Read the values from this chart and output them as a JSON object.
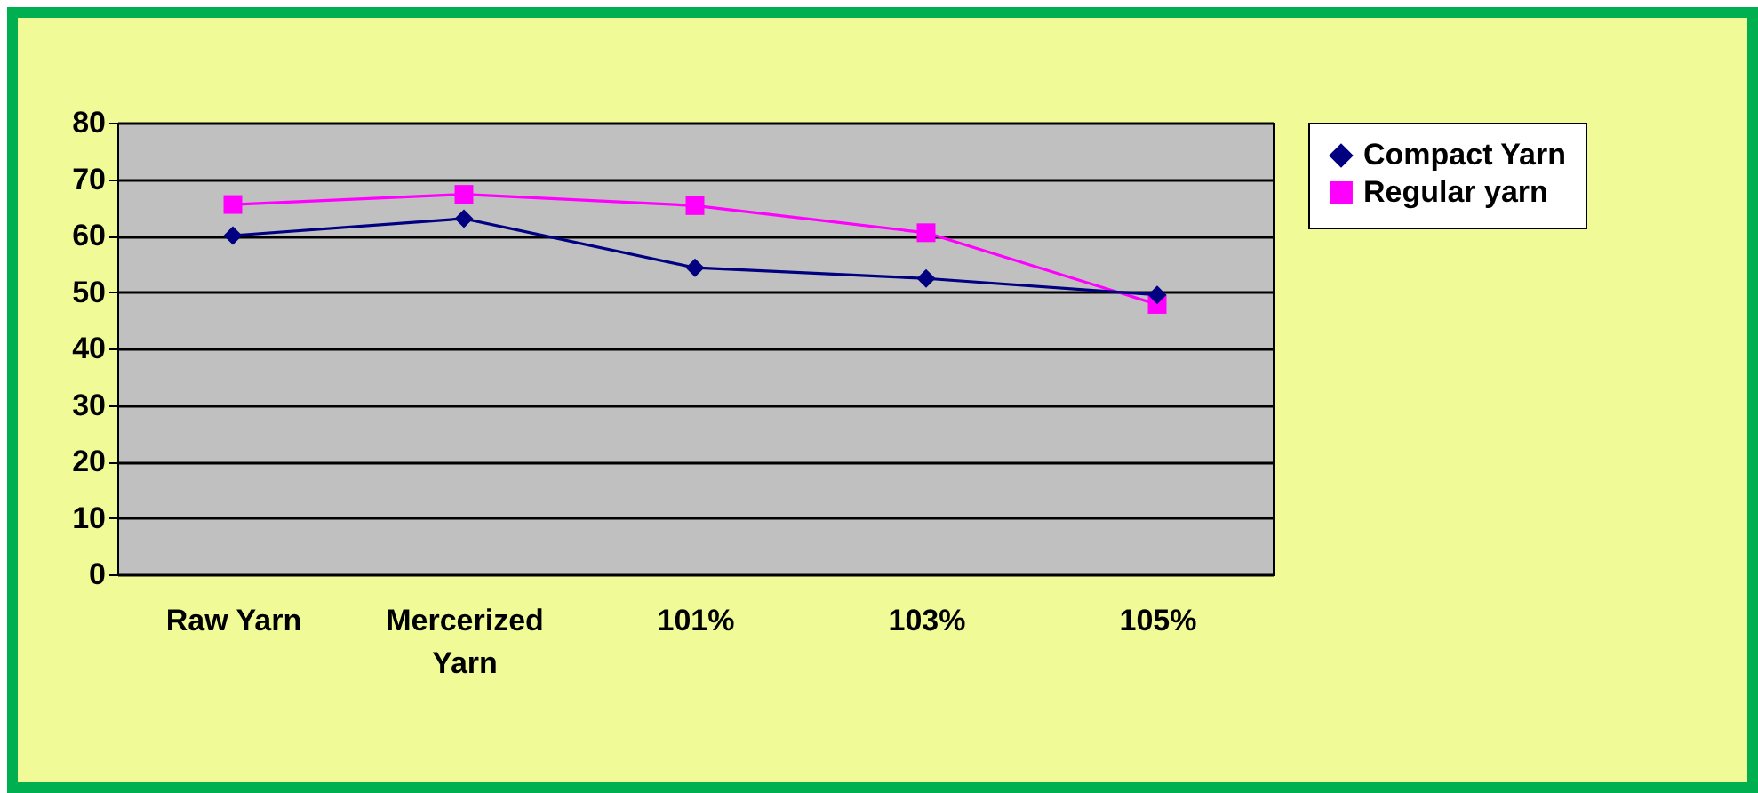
{
  "chart_data": {
    "type": "line",
    "categories": [
      "Raw Yarn",
      "Mercerized Yarn",
      "101%",
      "103%",
      "105%"
    ],
    "series": [
      {
        "name": "Compact Yarn",
        "color": "#000080",
        "marker": "diamond",
        "values": [
          60,
          63,
          54.3,
          52.4,
          49.5
        ]
      },
      {
        "name": "Regular yarn",
        "color": "#ff00ff",
        "marker": "square",
        "values": [
          65.5,
          67.3,
          65.3,
          60.5,
          47.8
        ]
      }
    ],
    "ylim": [
      0,
      80
    ],
    "yticks": [
      0,
      10,
      20,
      30,
      40,
      50,
      60,
      70,
      80
    ],
    "grid": "y",
    "legend": "right"
  }
}
